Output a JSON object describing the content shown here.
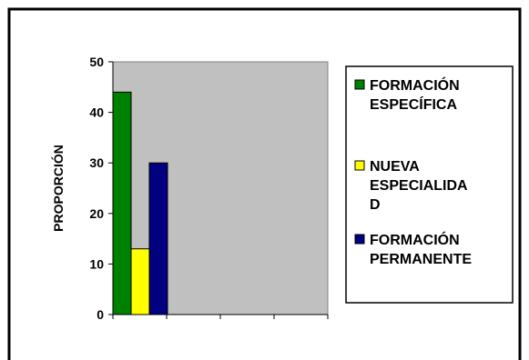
{
  "chart_data": {
    "type": "bar",
    "title": "",
    "xlabel": "",
    "ylabel": "PROPORCIÓN",
    "ylim": [
      0,
      50
    ],
    "yticks": [
      0,
      10,
      20,
      30,
      40,
      50
    ],
    "x_category_slots": 4,
    "grid": false,
    "legend_position": "right",
    "plot_background": "#c0c0c0",
    "series": [
      {
        "name_lines": [
          "FORMACIÓN",
          "ESPECÍFICA"
        ],
        "value": 44,
        "color": "#008000"
      },
      {
        "name_lines": [
          "NUEVA",
          "ESPECIALIDA",
          "D"
        ],
        "value": 13,
        "color": "#ffff00"
      },
      {
        "name_lines": [
          "FORMACIÓN",
          "PERMANENTE"
        ],
        "value": 30,
        "color": "#000080"
      }
    ]
  }
}
